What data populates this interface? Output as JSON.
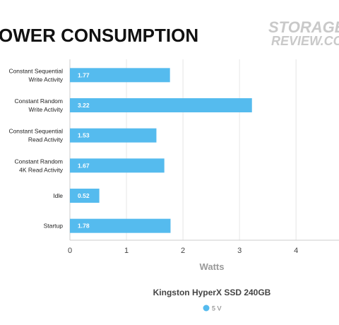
{
  "logo": {
    "line1": "STORAGE",
    "line2": "REVIEW.COM"
  },
  "chart_data": {
    "type": "bar",
    "orientation": "horizontal",
    "title": "OWER CONSUMPTION",
    "subtitle": "Kingston HyperX SSD 240GB",
    "xlabel": "Watts",
    "ylabel": "",
    "categories": [
      [
        "Constant Sequential",
        "Write Activity"
      ],
      [
        "Constant Random",
        "Write Activity"
      ],
      [
        "Constant Sequential",
        "Read Activity"
      ],
      [
        "Constant Random",
        "4K Read Activity"
      ],
      [
        "Idle"
      ],
      [
        "Startup"
      ]
    ],
    "series": [
      {
        "name": "5 V",
        "values": [
          1.77,
          3.22,
          1.53,
          1.67,
          0.52,
          1.78
        ],
        "color": "#55bbee"
      }
    ],
    "value_labels": [
      "1.77",
      "3.22",
      "1.53",
      "1.67",
      "0.52",
      "1.78"
    ],
    "xticks": [
      "0",
      "1",
      "2",
      "3",
      "4"
    ],
    "xlim": [
      0,
      4.76
    ],
    "grid": true,
    "legend": "bottom-center",
    "colors": {
      "grid": "#e6e6e6",
      "axis": "#cccccc"
    }
  }
}
